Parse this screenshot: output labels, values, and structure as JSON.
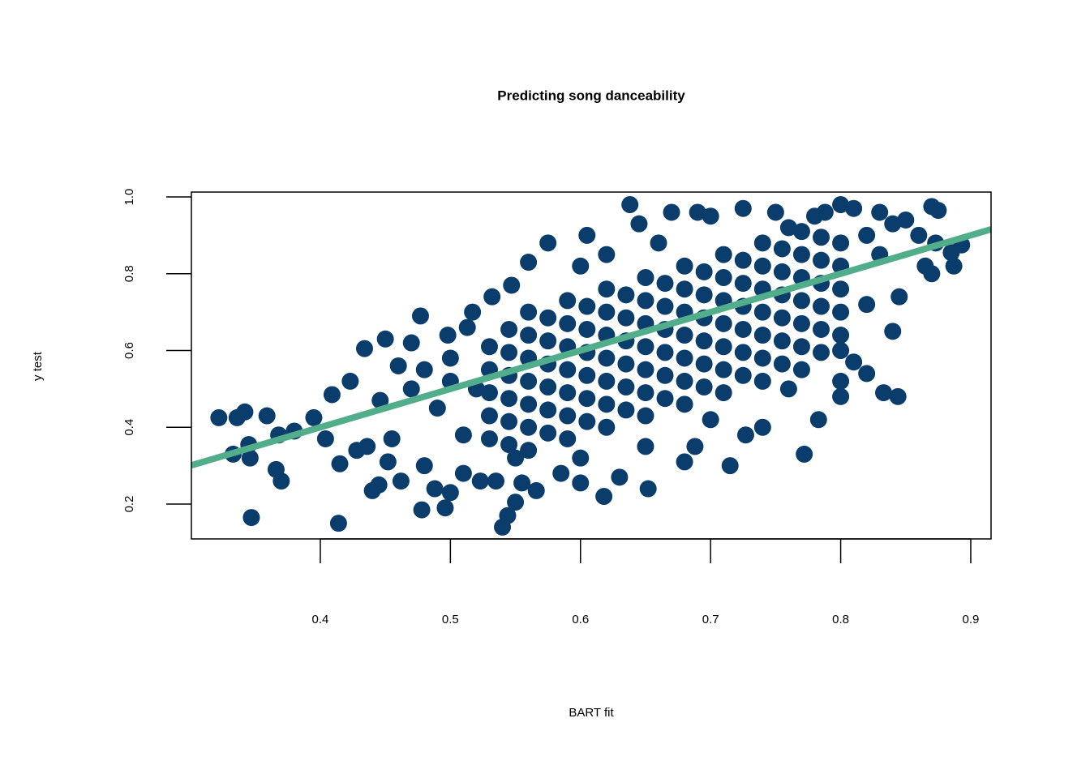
{
  "chart_data": {
    "type": "scatter",
    "title": "Predicting song danceability",
    "x_label": "BART fit",
    "y_label": "y test",
    "xlim": [
      0.3009,
      0.9156
    ],
    "ylim": [
      0.1092,
      1.0127
    ],
    "xticks": [
      0.4,
      0.5,
      0.6,
      0.7,
      0.8,
      0.9
    ],
    "yticks": [
      0.2,
      0.4,
      0.6,
      0.8,
      {
        "value": 1,
        "label": "1.0"
      }
    ],
    "color": "#0a3d6b",
    "abline": {
      "intercept": 0,
      "slope": 1,
      "color": "#52ae8a"
    },
    "x": [
      0.53,
      0.53,
      0.53,
      0.53,
      0.53,
      0.545,
      0.545,
      0.545,
      0.545,
      0.545,
      0.545,
      0.56,
      0.56,
      0.56,
      0.56,
      0.56,
      0.56,
      0.56,
      0.575,
      0.575,
      0.575,
      0.575,
      0.575,
      0.575,
      0.59,
      0.59,
      0.59,
      0.59,
      0.59,
      0.59,
      0.59,
      0.605,
      0.605,
      0.605,
      0.605,
      0.605,
      0.605,
      0.62,
      0.62,
      0.62,
      0.62,
      0.62,
      0.62,
      0.62,
      0.635,
      0.635,
      0.635,
      0.635,
      0.635,
      0.635,
      0.65,
      0.65,
      0.65,
      0.65,
      0.65,
      0.65,
      0.65,
      0.665,
      0.665,
      0.665,
      0.665,
      0.665,
      0.665,
      0.68,
      0.68,
      0.68,
      0.68,
      0.68,
      0.68,
      0.68,
      0.695,
      0.695,
      0.695,
      0.695,
      0.695,
      0.695,
      0.71,
      0.71,
      0.71,
      0.71,
      0.71,
      0.71,
      0.71,
      0.725,
      0.725,
      0.725,
      0.725,
      0.725,
      0.725,
      0.74,
      0.74,
      0.74,
      0.74,
      0.74,
      0.74,
      0.74,
      0.755,
      0.755,
      0.755,
      0.755,
      0.755,
      0.755,
      0.77,
      0.77,
      0.77,
      0.77,
      0.77,
      0.77,
      0.77,
      0.785,
      0.785,
      0.785,
      0.785,
      0.785,
      0.785,
      0.8,
      0.8,
      0.8,
      0.8,
      0.8,
      0.322,
      0.333,
      0.336,
      0.342,
      0.345,
      0.346,
      0.347,
      0.359,
      0.366,
      0.37,
      0.368,
      0.38,
      0.395,
      0.404,
      0.409,
      0.414,
      0.415,
      0.423,
      0.428,
      0.434,
      0.436,
      0.44,
      0.445,
      0.446,
      0.45,
      0.452,
      0.455,
      0.462,
      0.46,
      0.47,
      0.477,
      0.478,
      0.48,
      0.488,
      0.496,
      0.498,
      0.5,
      0.51,
      0.513,
      0.517,
      0.523,
      0.532,
      0.535,
      0.54,
      0.544,
      0.547,
      0.55,
      0.555,
      0.56,
      0.566,
      0.575,
      0.585,
      0.6,
      0.605,
      0.618,
      0.63,
      0.638,
      0.645,
      0.652,
      0.67,
      0.68,
      0.69,
      0.688,
      0.7,
      0.715,
      0.725,
      0.727,
      0.74,
      0.75,
      0.772,
      0.78,
      0.783,
      0.788,
      0.8,
      0.8,
      0.8,
      0.81,
      0.81,
      0.82,
      0.83,
      0.833,
      0.84,
      0.844,
      0.84,
      0.845,
      0.85,
      0.86,
      0.87,
      0.875,
      0.87,
      0.873,
      0.885,
      0.887,
      0.893,
      0.865,
      0.47,
      0.49,
      0.5,
      0.51,
      0.5,
      0.62,
      0.6,
      0.66,
      0.76,
      0.82,
      0.82,
      0.8,
      0.76,
      0.7,
      0.65,
      0.6,
      0.55,
      0.52,
      0.48,
      0.83
    ],
    "y": [
      0.37,
      0.43,
      0.49,
      0.55,
      0.61,
      0.355,
      0.415,
      0.475,
      0.535,
      0.595,
      0.655,
      0.34,
      0.4,
      0.46,
      0.52,
      0.58,
      0.64,
      0.7,
      0.385,
      0.445,
      0.505,
      0.565,
      0.625,
      0.685,
      0.37,
      0.43,
      0.49,
      0.55,
      0.61,
      0.67,
      0.73,
      0.415,
      0.475,
      0.535,
      0.595,
      0.655,
      0.715,
      0.4,
      0.46,
      0.52,
      0.58,
      0.64,
      0.7,
      0.76,
      0.445,
      0.505,
      0.565,
      0.625,
      0.685,
      0.745,
      0.43,
      0.49,
      0.55,
      0.61,
      0.67,
      0.73,
      0.79,
      0.475,
      0.535,
      0.595,
      0.655,
      0.715,
      0.775,
      0.46,
      0.52,
      0.58,
      0.64,
      0.7,
      0.76,
      0.82,
      0.505,
      0.565,
      0.625,
      0.685,
      0.745,
      0.805,
      0.49,
      0.55,
      0.61,
      0.67,
      0.73,
      0.79,
      0.85,
      0.535,
      0.595,
      0.655,
      0.715,
      0.775,
      0.835,
      0.52,
      0.58,
      0.64,
      0.7,
      0.76,
      0.82,
      0.88,
      0.565,
      0.625,
      0.685,
      0.745,
      0.805,
      0.865,
      0.55,
      0.61,
      0.67,
      0.73,
      0.79,
      0.85,
      0.91,
      0.595,
      0.655,
      0.715,
      0.775,
      0.835,
      0.895,
      0.64,
      0.7,
      0.76,
      0.82,
      0.88,
      0.425,
      0.33,
      0.425,
      0.44,
      0.355,
      0.32,
      0.165,
      0.43,
      0.29,
      0.26,
      0.38,
      0.39,
      0.425,
      0.37,
      0.485,
      0.15,
      0.305,
      0.52,
      0.34,
      0.605,
      0.35,
      0.235,
      0.25,
      0.47,
      0.63,
      0.31,
      0.37,
      0.26,
      0.56,
      0.62,
      0.69,
      0.185,
      0.3,
      0.24,
      0.19,
      0.64,
      0.23,
      0.28,
      0.66,
      0.7,
      0.26,
      0.74,
      0.26,
      0.14,
      0.17,
      0.77,
      0.205,
      0.255,
      0.83,
      0.235,
      0.88,
      0.28,
      0.255,
      0.9,
      0.22,
      0.27,
      0.98,
      0.93,
      0.24,
      0.96,
      0.31,
      0.96,
      0.35,
      0.95,
      0.3,
      0.97,
      0.38,
      0.4,
      0.96,
      0.33,
      0.95,
      0.42,
      0.96,
      0.98,
      0.48,
      0.52,
      0.97,
      0.57,
      0.54,
      0.96,
      0.49,
      0.93,
      0.48,
      0.65,
      0.74,
      0.94,
      0.9,
      0.975,
      0.965,
      0.8,
      0.88,
      0.855,
      0.82,
      0.875,
      0.82,
      0.5,
      0.45,
      0.52,
      0.38,
      0.58,
      0.85,
      0.82,
      0.88,
      0.92,
      0.9,
      0.72,
      0.6,
      0.5,
      0.42,
      0.35,
      0.32,
      0.32,
      0.5,
      0.55,
      0.85
    ]
  }
}
